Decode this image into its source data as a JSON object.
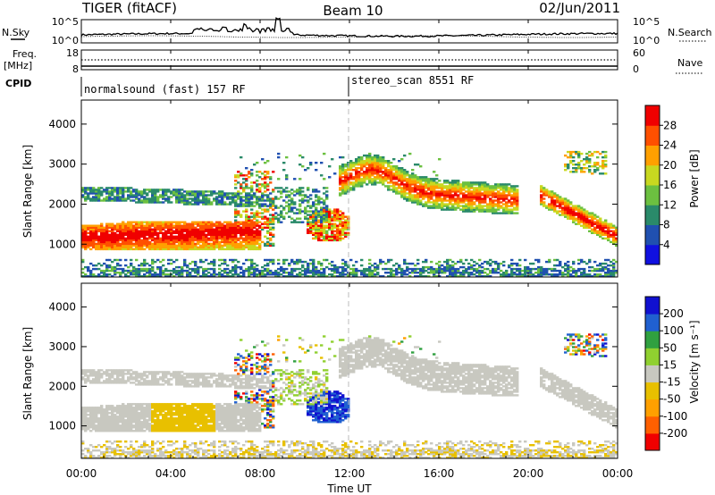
{
  "header": {
    "radar": "TIGER (fitACF)",
    "beam": "Beam 10",
    "date": "02/Jun/2011"
  },
  "top_panels": {
    "nsky_label": "N.Sky",
    "nsky_ticks": [
      "10^5",
      "10^0"
    ],
    "nsearch_label": "N.Search",
    "nsearch_ticks": [
      "10^5",
      "10^0"
    ],
    "freq_label": "Freq.",
    "freq_unit": "[MHz]",
    "freq_ticks": [
      "18",
      "8"
    ],
    "nave_label": "Nave",
    "nave_ticks": [
      "60",
      "0"
    ],
    "cpid_label": "CPID",
    "cpid_segments": [
      {
        "label": "normalsound (fast) 157 RF",
        "start_hour": 0,
        "end_hour": 12
      },
      {
        "label": "stereo_scan 8551 RF",
        "start_hour": 12,
        "end_hour": 24
      }
    ]
  },
  "chart_data": [
    {
      "type": "heatmap",
      "name": "power",
      "ylabel": "Slant Range [km]",
      "yticks": [
        1000,
        2000,
        3000,
        4000
      ],
      "ylim": [
        180,
        4600
      ],
      "xlim": [
        0,
        24
      ],
      "colorbar_label": "Power [dB]",
      "colorbar_ticks": [
        "4",
        "8",
        "12",
        "16",
        "20",
        "24",
        "28"
      ],
      "colorbar_range": [
        0,
        32
      ],
      "colors": [
        "#1010e0",
        "#2050b0",
        "#2a8a6a",
        "#6cc040",
        "#c8d820",
        "#ffa000",
        "#ff5000",
        "#f00000"
      ]
    },
    {
      "type": "heatmap",
      "name": "velocity",
      "ylabel": "Slant Range [km]",
      "yticks": [
        1000,
        2000,
        3000,
        4000
      ],
      "ylim": [
        180,
        4600
      ],
      "xlim": [
        0,
        24
      ],
      "xticks": [
        "00:00",
        "04:00",
        "08:00",
        "12:00",
        "16:00",
        "20:00",
        "00:00"
      ],
      "xlabel": "Time UT",
      "colorbar_label": "Velocity [m s⁻¹]",
      "colorbar_ticks": [
        "-200",
        "-100",
        "-50",
        "-15",
        "15",
        "50",
        "100",
        "200"
      ],
      "colors": [
        "#f00000",
        "#ff6000",
        "#ffa000",
        "#e8c000",
        "#c8c8c0",
        "#90d030",
        "#30a040",
        "#2060d0",
        "#1010d0"
      ]
    }
  ]
}
